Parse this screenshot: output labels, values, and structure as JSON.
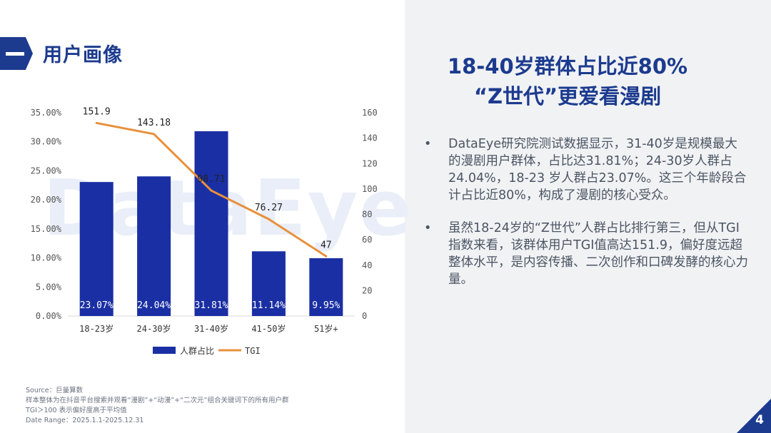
{
  "section": {
    "title": "用户画像"
  },
  "watermark": "DataEye",
  "headline": {
    "line1": "18-40岁群体占比近80%",
    "line2": "“Z世代”更爱看漫剧"
  },
  "bullets": [
    "DataEye研究院测试数据显示，31-40岁是规模最大的漫剧用户群体，占比达31.81%；24-30岁人群占24.04%，18-23 岁人群占23.07%。这三个年龄段合计占比近80%，构成了漫剧的核心受众。",
    "虽然18-24岁的“Z世代”人群占比排行第三，但从TGI指数来看，该群体用户TGI值高达151.9，偏好度远超整体水平，是内容传播、二次创作和口碑发酵的核心力量。"
  ],
  "bullet_marker": "•",
  "source": {
    "line1": "Source：巨量算数",
    "line2": "样本整体为在抖音平台搜索并观看“漫剧”+“动漫”+“二次元”组合关键词下的所有用户群",
    "line3": "TGI＞100 表示偏好度高于平均值",
    "line4": "Date Range：2025.1.1-2025.12.31"
  },
  "page_number": "4",
  "colors": {
    "bar": "#1a2fa3",
    "line": "#e8903c",
    "brand": "#1c3b8f"
  },
  "chart_data": {
    "type": "bar",
    "categories": [
      "18-23岁",
      "24-30岁",
      "31-40岁",
      "41-50岁",
      "51岁+"
    ],
    "series": [
      {
        "name": "人群占比",
        "type": "bar",
        "axis": "left",
        "values": [
          23.07,
          24.04,
          31.81,
          11.14,
          9.95
        ],
        "labels": [
          "23.07%",
          "24.04%",
          "31.81%",
          "11.14%",
          "9.95%"
        ]
      },
      {
        "name": "TGI",
        "type": "line",
        "axis": "right",
        "values": [
          151.9,
          143.18,
          98.71,
          76.27,
          47
        ],
        "labels": [
          "151.9",
          "143.18",
          "98.71",
          "76.27",
          "47"
        ]
      }
    ],
    "y_left": {
      "min": 0,
      "max": 35,
      "ticks": [
        "0.00%",
        "5.00%",
        "10.00%",
        "15.00%",
        "20.00%",
        "25.00%",
        "30.00%",
        "35.00%"
      ]
    },
    "y_right": {
      "min": 0,
      "max": 160,
      "ticks": [
        "0",
        "20",
        "40",
        "60",
        "80",
        "100",
        "120",
        "140",
        "160"
      ]
    },
    "grid": false,
    "legend_position": "bottom"
  }
}
